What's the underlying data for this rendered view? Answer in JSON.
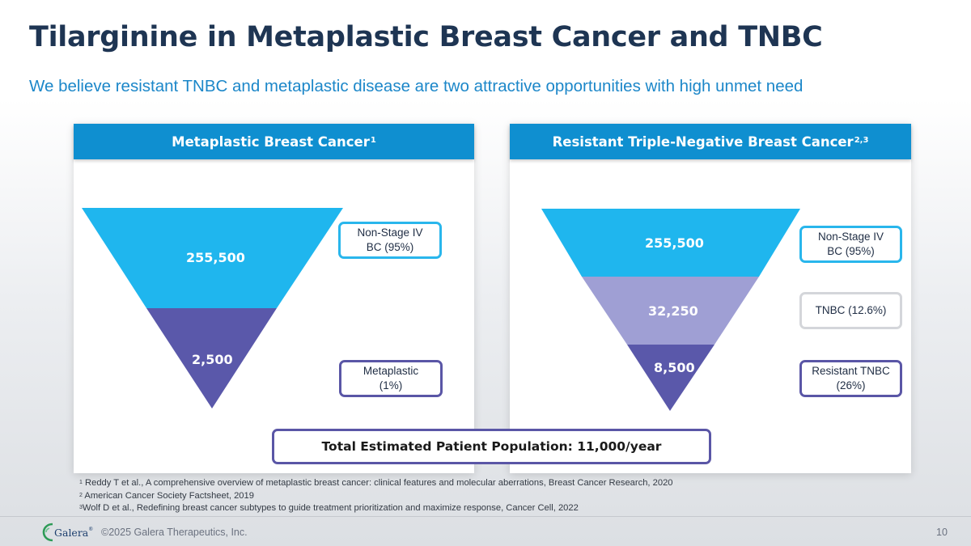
{
  "title": "Tilarginine in Metaplastic Breast Cancer and TNBC",
  "subtitle": "We believe resistant TNBC and metaplastic disease are two attractive opportunities with high unmet need",
  "panels": {
    "left": {
      "header": "Metaplastic Breast Cancer",
      "header_sup": "1",
      "segments": [
        {
          "value": "255,500",
          "color": "#1fb6ee",
          "tag": "Non-Stage IV\nBC (95%)"
        },
        {
          "value": "2,500",
          "color": "#5a58aa",
          "tag": "Metaplastic\n(1%)"
        }
      ]
    },
    "right": {
      "header": "Resistant Triple-Negative Breast Cancer",
      "header_sup": "2,3",
      "segments": [
        {
          "value": "255,500",
          "color": "#1fb6ee",
          "tag": "Non-Stage IV\nBC (95%)"
        },
        {
          "value": "32,250",
          "color": "#9f9fd4",
          "tag": "TNBC (12.6%)"
        },
        {
          "value": "8,500",
          "color": "#5a58aa",
          "tag": "Resistant TNBC\n(26%)"
        }
      ]
    }
  },
  "total": "Total Estimated Patient Population: 11,000/year",
  "footnotes": [
    {
      "sup": "1",
      "text": " Reddy T et al., A comprehensive overview of metaplastic breast cancer: clinical features and molecular aberrations, Breast Cancer Research, 2020"
    },
    {
      "sup": "2",
      "text": " American Cancer Society Factsheet, 2019"
    },
    {
      "sup": "3",
      "text": "Wolf D et al., Redefining breast cancer subtypes to guide treatment prioritization and maximize response, Cancer Cell, 2022"
    }
  ],
  "footer": {
    "logo_text": "Galera",
    "logo_sup": "®",
    "copyright": "©2025 Galera Therapeutics, Inc.",
    "page_number": "10"
  }
}
